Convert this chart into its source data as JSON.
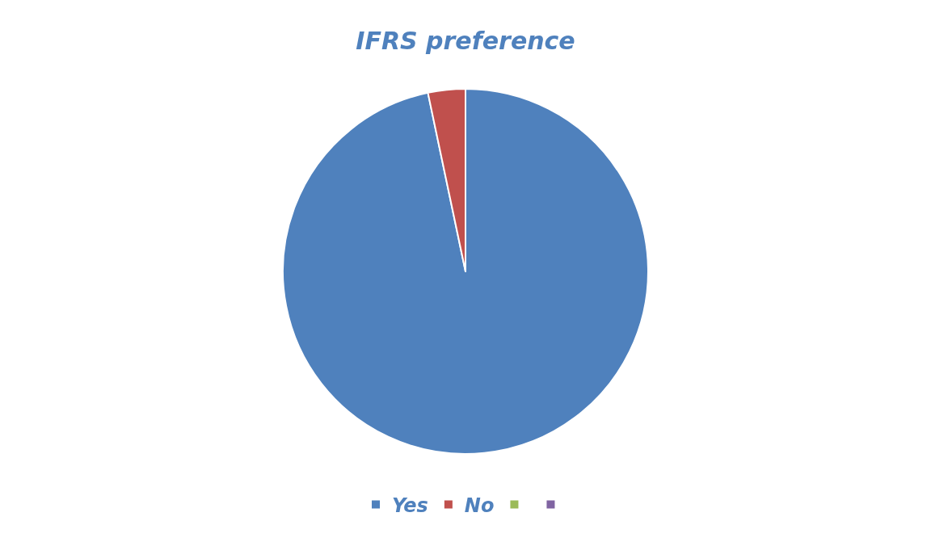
{
  "chart_data": {
    "type": "pie",
    "title": "IFRS preference",
    "categories": [
      "Yes",
      "No",
      null,
      null
    ],
    "values": [
      96.7,
      3.3,
      0,
      0
    ],
    "colors": [
      "#4f81bd",
      "#c0504d",
      "#9bbb59",
      "#8064a2"
    ],
    "legend": "bottom"
  }
}
